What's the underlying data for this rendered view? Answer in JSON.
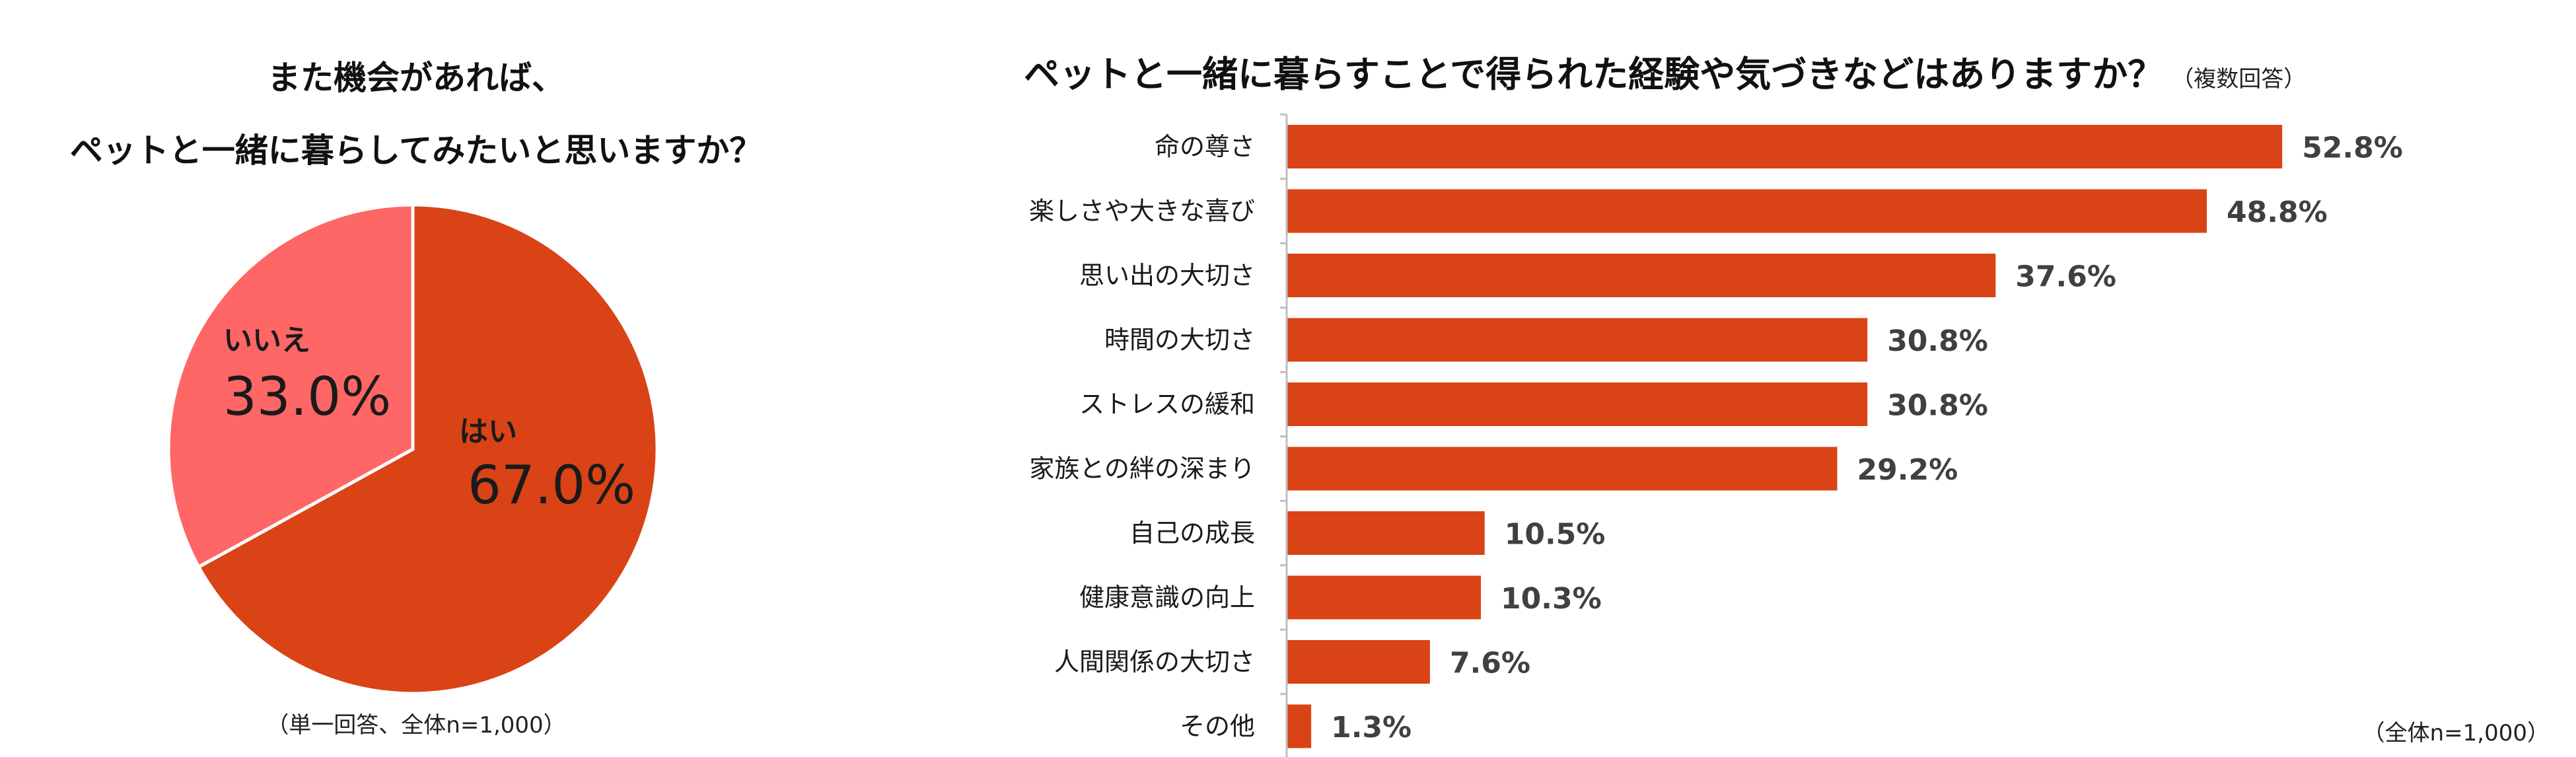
{
  "colors": {
    "yes": "#d94316",
    "no": "#ff6666",
    "bar": "#d94316",
    "axis": "#bfbfbf",
    "value_text": "#404040",
    "pie_stroke": "#ffffff"
  },
  "chart_data": [
    {
      "type": "pie",
      "title_lines": [
        "また機会があれば、",
        "ペットと一緒に暮らしてみたいと思いますか？"
      ],
      "slices": [
        {
          "label": "はい",
          "value": 67.0,
          "value_label": "67.0%",
          "color": "#d94316"
        },
        {
          "label": "いいえ",
          "value": 33.0,
          "value_label": "33.0%",
          "color": "#ff6666"
        }
      ],
      "note": "（単一回答、全体n=1,000）"
    },
    {
      "type": "bar",
      "orientation": "horizontal",
      "title": "ペットと一緒に暮らすことで得られた経験や気づきなどはありますか？",
      "title_note": "（複数回答）",
      "categories": [
        "命の尊さ",
        "楽しさや大きな喜び",
        "思い出の大切さ",
        "時間の大切さ",
        "ストレスの緩和",
        "家族との絆の深まり",
        "自己の成長",
        "健康意識の向上",
        "人間関係の大切さ",
        "その他"
      ],
      "values": [
        52.8,
        48.8,
        37.6,
        30.8,
        30.8,
        29.2,
        10.5,
        10.3,
        7.6,
        1.3
      ],
      "value_labels": [
        "52.8%",
        "48.8%",
        "37.6%",
        "30.8%",
        "30.8%",
        "29.2%",
        "10.5%",
        "10.3%",
        "7.6%",
        "1.3%"
      ],
      "xlim": [
        0,
        55
      ],
      "note": "（全体n=1,000）"
    }
  ]
}
